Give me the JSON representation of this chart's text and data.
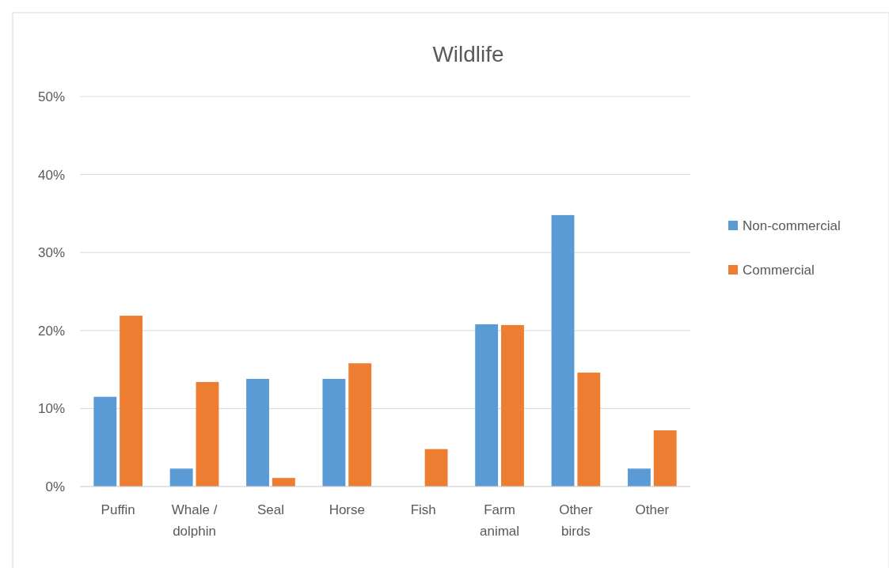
{
  "chart_data": {
    "type": "bar",
    "title": "Wildlife",
    "categories": [
      "Puffin",
      "Whale / dolphin",
      "Seal",
      "Horse",
      "Fish",
      "Farm animal",
      "Other birds",
      "Other"
    ],
    "series": [
      {
        "name": "Non-commercial",
        "color": "#5b9bd5",
        "values": [
          11.5,
          2.3,
          13.8,
          13.8,
          0,
          20.8,
          34.8,
          2.3
        ]
      },
      {
        "name": "Commercial",
        "color": "#ed7d31",
        "values": [
          21.9,
          13.4,
          1.1,
          15.8,
          4.8,
          20.7,
          14.6,
          7.2
        ]
      }
    ],
    "ylim": [
      0,
      50
    ],
    "yticks": [
      {
        "value": 0,
        "label": "0%"
      },
      {
        "value": 10,
        "label": "10%"
      },
      {
        "value": 20,
        "label": "20%"
      },
      {
        "value": 30,
        "label": "30%"
      },
      {
        "value": 40,
        "label": "40%"
      },
      {
        "value": 50,
        "label": "50%"
      }
    ],
    "grid": "y",
    "legend": "right"
  }
}
